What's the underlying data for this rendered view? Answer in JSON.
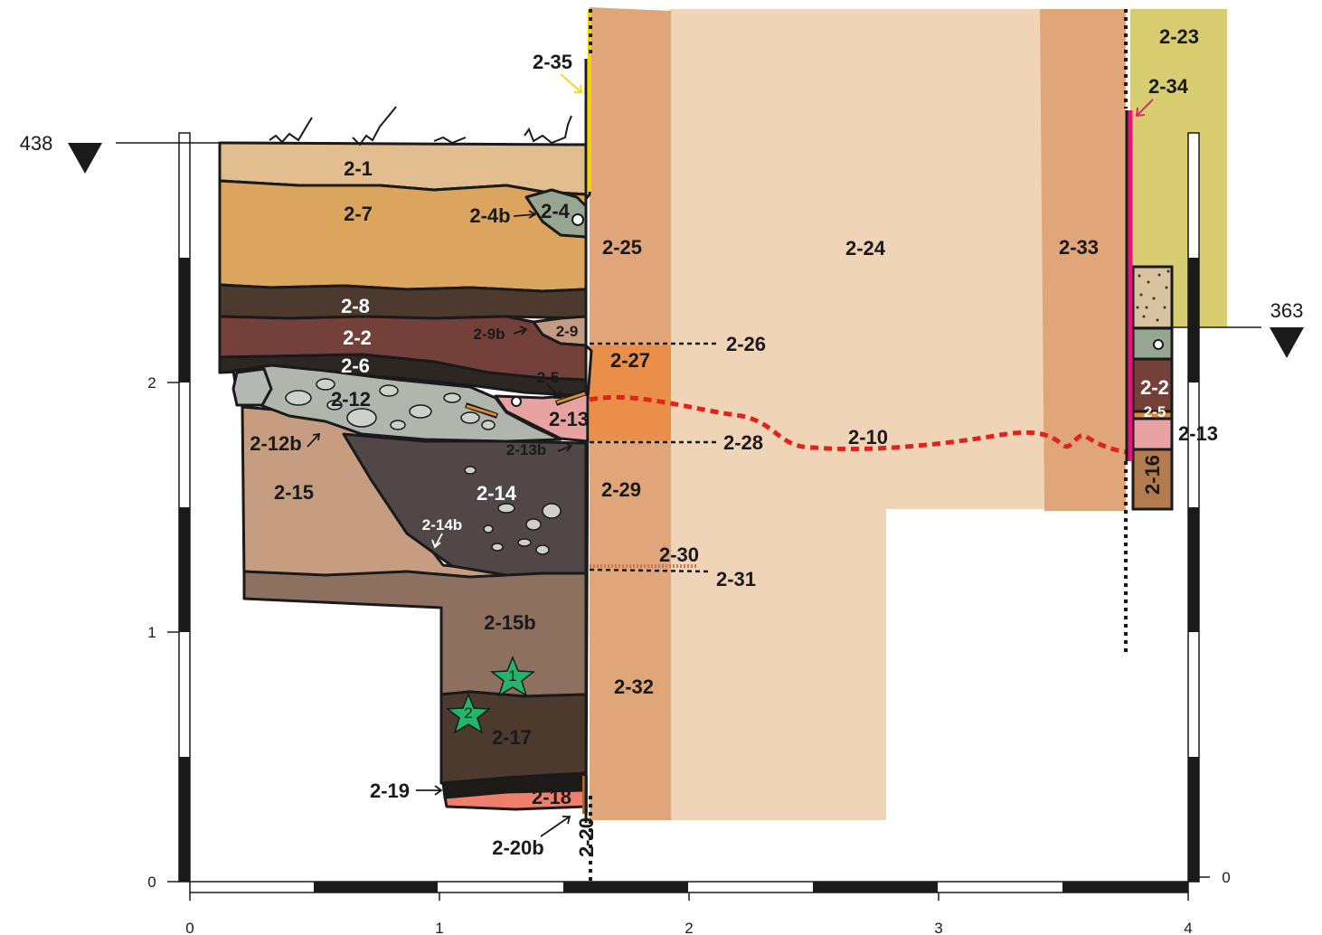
{
  "colors": {
    "topsoil": "#e1bd90",
    "ochre": "#dca55f",
    "dark_brown": "#4c3a2e",
    "maroon": "#73403a",
    "very_dark": "#2d2723",
    "gray_gravel": "#b0b5ae",
    "brown_tan": "#c79d82",
    "taupe": "#8d7060",
    "dark_gray": "#524747",
    "pink": "#e9a2a2",
    "salmon": "#ef7f6d",
    "khaki": "#d9cd72",
    "gray_green": "#97a690",
    "wall_dark": "#e0a67a",
    "wall_light": "#f0d4b8",
    "orange": "#ea8f49",
    "red_line": "#e2231a",
    "magenta": "#e2157a",
    "yellow": "#f6d300",
    "star_green": "#24b56a"
  },
  "datums": {
    "left": {
      "value": "438",
      "icon": "datum-triangle-icon"
    },
    "right": {
      "value": "363",
      "icon": "datum-triangle-icon"
    }
  },
  "axes": {
    "x_ticks": [
      "0",
      "1",
      "2",
      "3",
      "4"
    ],
    "y_left_ticks": [
      "0",
      "1",
      "2"
    ],
    "y_right_ticks": [
      "0"
    ]
  },
  "units": {
    "u2_1": "2-1",
    "u2_7": "2-7",
    "u2_4b": "2-4b",
    "u2_4": "2-4",
    "u2_8": "2-8",
    "u2_2": "2-2",
    "u2_9b": "2-9b",
    "u2_9": "2-9",
    "u2_6": "2-6",
    "u2_12": "2-12",
    "u2_5": "2-5",
    "u2_13": "2-13",
    "u2_12b": "2-12b",
    "u2_13b": "2-13b",
    "u2_15": "2-15",
    "u2_14": "2-14",
    "u2_14b": "2-14b",
    "u2_15b": "2-15b",
    "u2_17": "2-17",
    "u2_19": "2-19",
    "u2_18": "2-18",
    "u2_20b": "2-20b",
    "u2_20": "2-20",
    "u2_35": "2-35",
    "u2_25": "2-25",
    "u2_27": "2-27",
    "u2_29": "2-29",
    "u2_32": "2-32",
    "u2_26": "2-26",
    "u2_28": "2-28",
    "u2_30": "2-30",
    "u2_31": "2-31",
    "u2_24": "2-24",
    "u2_10": "2-10",
    "u2_33": "2-33",
    "u2_23": "2-23",
    "u2_34": "2-34",
    "u2_2r": "2-2",
    "u2_5r": "2-5",
    "u2_13r": "2-13",
    "u2_16": "2-16"
  },
  "stars": [
    {
      "label": "1",
      "icon": "star-icon"
    },
    {
      "label": "2",
      "icon": "star-icon"
    }
  ]
}
